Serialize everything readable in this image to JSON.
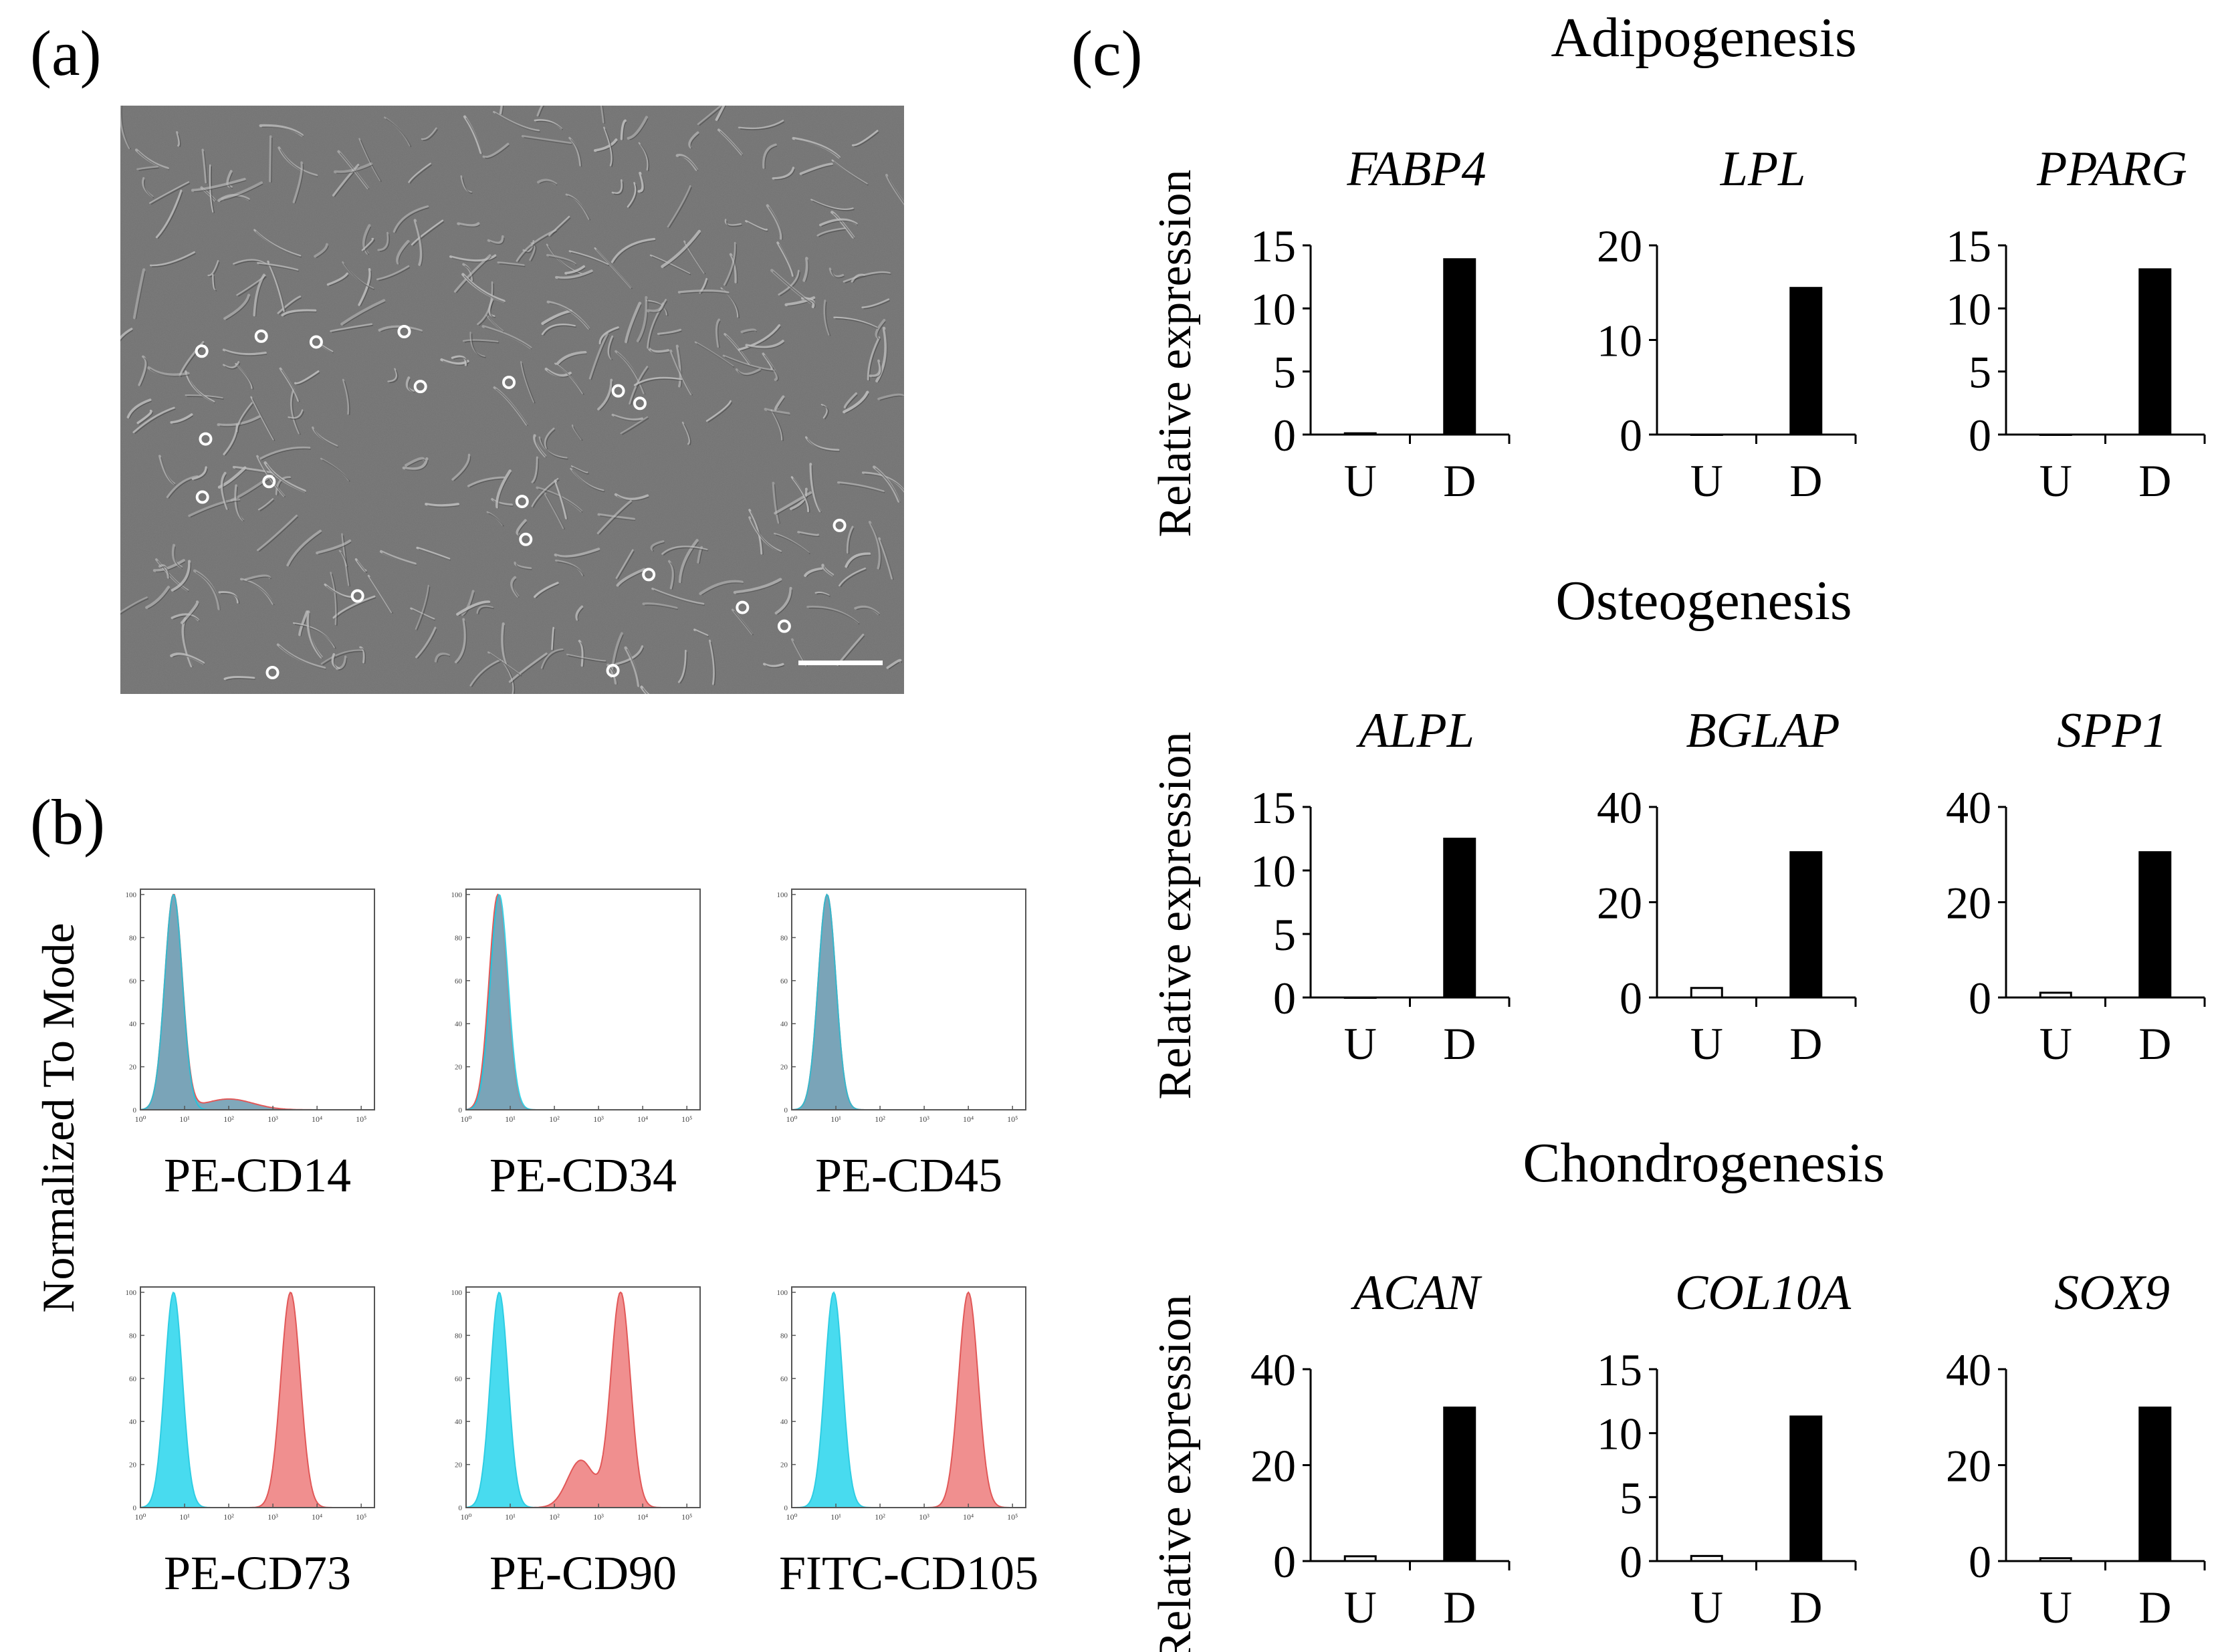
{
  "panel_labels": {
    "a": "(a)",
    "b": "(b)",
    "c": "(c)"
  },
  "micrograph": {
    "description_icon": "phase-contrast-micrograph",
    "scale_bar_icon": "scale-bar"
  },
  "flow": {
    "ylabel": "Normalized To Mode",
    "y_ticks": [
      "0",
      "20",
      "40",
      "60",
      "80",
      "100"
    ],
    "x_ticks": [
      "10⁰",
      "10¹",
      "10²",
      "10³",
      "10⁴",
      "10⁵"
    ],
    "colors": {
      "control": "#35d8ee",
      "stained": "#f08a8a",
      "overlap": "#7aa4b8"
    },
    "panels": [
      {
        "label": "PE-CD14",
        "control_peak": 0.75,
        "stained_peak": 0.75,
        "shoulder": true
      },
      {
        "label": "PE-CD34",
        "control_peak": 0.75,
        "stained_peak": 0.72,
        "shoulder": false
      },
      {
        "label": "PE-CD45",
        "control_peak": 0.8,
        "stained_peak": 0.8,
        "shoulder": false
      },
      {
        "label": "PE-CD73",
        "control_peak": 0.75,
        "stained_peak": 3.4,
        "shoulder": false
      },
      {
        "label": "PE-CD90",
        "control_peak": 0.75,
        "stained_peak": 3.5,
        "shoulder": true
      },
      {
        "label": "FITC-CD105",
        "control_peak": 0.95,
        "stained_peak": 4.0,
        "shoulder": false
      }
    ]
  },
  "chart_data": [
    {
      "type": "bar",
      "group": "Adipogenesis",
      "title": "FABP4",
      "categories": [
        "U",
        "D"
      ],
      "values": [
        0.1,
        13.9
      ],
      "ylabel": "Relative expression",
      "ylim": [
        0,
        15
      ],
      "yticks": [
        "0",
        "5",
        "10",
        "15"
      ]
    },
    {
      "type": "bar",
      "group": "Adipogenesis",
      "title": "LPL",
      "categories": [
        "U",
        "D"
      ],
      "values": [
        0.0,
        15.5
      ],
      "ylabel": "",
      "ylim": [
        0,
        20
      ],
      "yticks": [
        "0",
        "10",
        "20"
      ]
    },
    {
      "type": "bar",
      "group": "Adipogenesis",
      "title": "PPARG",
      "categories": [
        "U",
        "D"
      ],
      "values": [
        0.0,
        13.1
      ],
      "ylabel": "",
      "ylim": [
        0,
        15
      ],
      "yticks": [
        "0",
        "5",
        "10",
        "15"
      ]
    },
    {
      "type": "bar",
      "group": "Osteogenesis",
      "title": "ALPL",
      "categories": [
        "U",
        "D"
      ],
      "values": [
        0.0,
        12.5
      ],
      "ylabel": "Relative expression",
      "ylim": [
        0,
        15
      ],
      "yticks": [
        "0",
        "5",
        "10",
        "15"
      ]
    },
    {
      "type": "bar",
      "group": "Osteogenesis",
      "title": "BGLAP",
      "categories": [
        "U",
        "D"
      ],
      "values": [
        2.0,
        30.5
      ],
      "ylabel": "",
      "ylim": [
        0,
        40
      ],
      "yticks": [
        "0",
        "20",
        "40"
      ]
    },
    {
      "type": "bar",
      "group": "Osteogenesis",
      "title": "SPP1",
      "categories": [
        "U",
        "D"
      ],
      "values": [
        1.0,
        30.5
      ],
      "ylabel": "",
      "ylim": [
        0,
        40
      ],
      "yticks": [
        "0",
        "20",
        "40"
      ]
    },
    {
      "type": "bar",
      "group": "Chondrogenesis",
      "title": "ACAN",
      "categories": [
        "U",
        "D"
      ],
      "values": [
        1.0,
        32.0
      ],
      "ylabel": "Relative expression",
      "ylim": [
        0,
        40
      ],
      "yticks": [
        "0",
        "20",
        "40"
      ]
    },
    {
      "type": "bar",
      "group": "Chondrogenesis",
      "title": "COL10A",
      "categories": [
        "U",
        "D"
      ],
      "values": [
        0.4,
        11.3
      ],
      "ylabel": "",
      "ylim": [
        0,
        15
      ],
      "yticks": [
        "0",
        "5",
        "10",
        "15"
      ]
    },
    {
      "type": "bar",
      "group": "Chondrogenesis",
      "title": "SOX9",
      "categories": [
        "U",
        "D"
      ],
      "values": [
        0.6,
        32.0
      ],
      "ylabel": "",
      "ylim": [
        0,
        40
      ],
      "yticks": [
        "0",
        "20",
        "40"
      ]
    }
  ],
  "bar_colors": {
    "U": "#ffffff",
    "D": "#000000"
  },
  "group_titles": [
    "Adipogenesis",
    "Osteogenesis",
    "Chondrogenesis"
  ]
}
